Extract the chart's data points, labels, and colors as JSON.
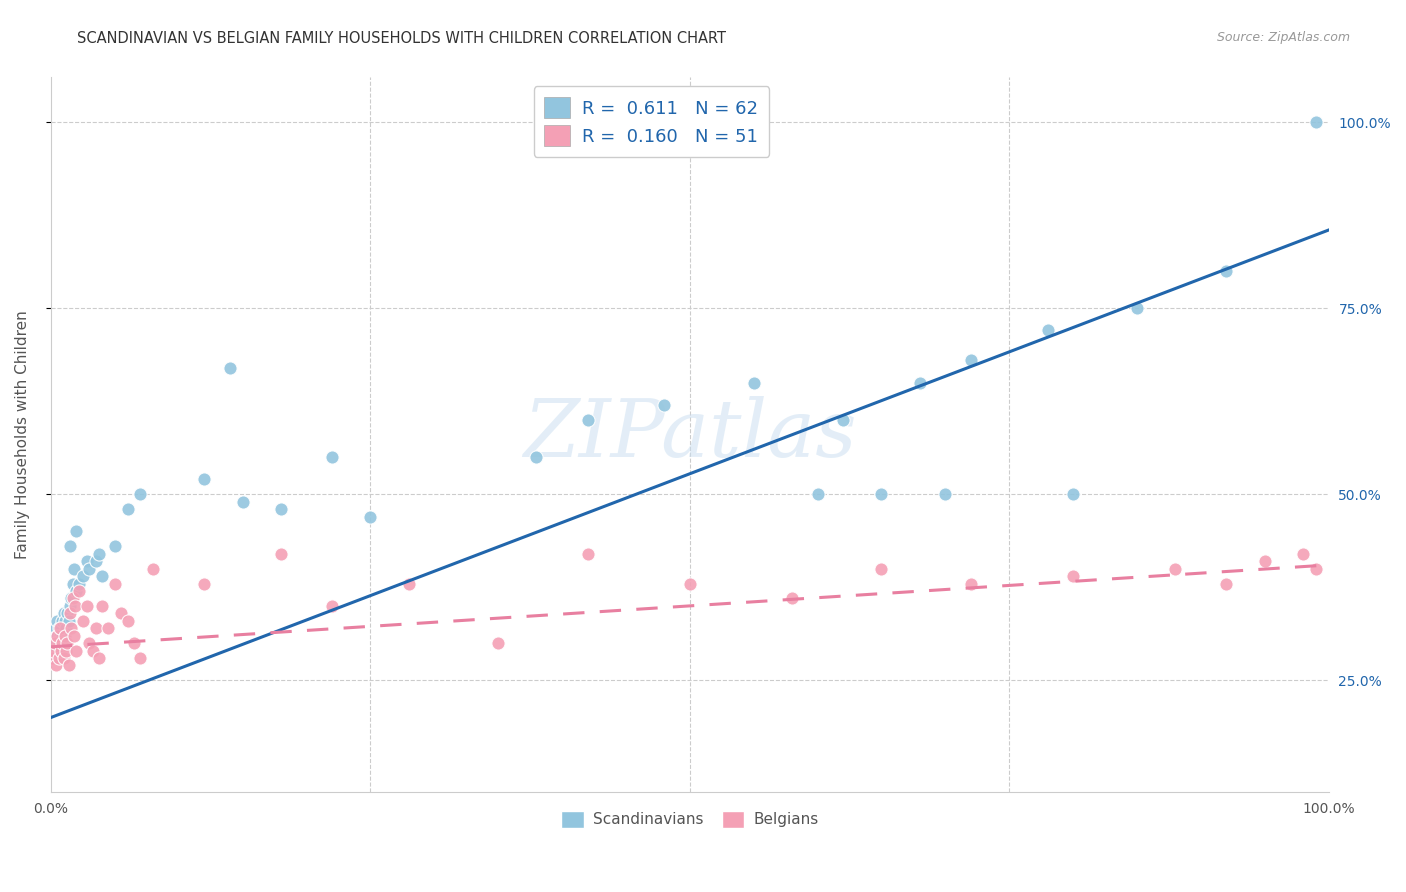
{
  "title": "SCANDINAVIAN VS BELGIAN FAMILY HOUSEHOLDS WITH CHILDREN CORRELATION CHART",
  "source": "Source: ZipAtlas.com",
  "ylabel": "Family Households with Children",
  "watermark": "ZIPatlas",
  "scandinavian_color": "#92c5de",
  "belgian_color": "#f4a0b5",
  "scandinavian_line_color": "#2166ac",
  "belgian_line_color": "#e87fa0",
  "R_scand": 0.611,
  "N_scand": 62,
  "R_belg": 0.16,
  "N_belg": 51,
  "scand_x": [
    0.001,
    0.002,
    0.002,
    0.003,
    0.003,
    0.004,
    0.004,
    0.005,
    0.005,
    0.005,
    0.006,
    0.006,
    0.007,
    0.007,
    0.008,
    0.008,
    0.009,
    0.009,
    0.01,
    0.01,
    0.011,
    0.012,
    0.013,
    0.014,
    0.015,
    0.015,
    0.016,
    0.017,
    0.018,
    0.02,
    0.02,
    0.022,
    0.025,
    0.028,
    0.03,
    0.035,
    0.038,
    0.04,
    0.05,
    0.06,
    0.07,
    0.12,
    0.15,
    0.18,
    0.22,
    0.25,
    0.14,
    0.38,
    0.42,
    0.48,
    0.55,
    0.62,
    0.68,
    0.72,
    0.78,
    0.85,
    0.92,
    0.6,
    0.65,
    0.7,
    0.8,
    0.99
  ],
  "scand_y": [
    0.28,
    0.28,
    0.3,
    0.29,
    0.31,
    0.3,
    0.32,
    0.29,
    0.31,
    0.33,
    0.3,
    0.32,
    0.31,
    0.29,
    0.32,
    0.3,
    0.33,
    0.31,
    0.34,
    0.3,
    0.33,
    0.32,
    0.34,
    0.33,
    0.35,
    0.43,
    0.36,
    0.38,
    0.4,
    0.37,
    0.45,
    0.38,
    0.39,
    0.41,
    0.4,
    0.41,
    0.42,
    0.39,
    0.43,
    0.48,
    0.5,
    0.52,
    0.49,
    0.48,
    0.55,
    0.47,
    0.67,
    0.55,
    0.6,
    0.62,
    0.65,
    0.6,
    0.65,
    0.68,
    0.72,
    0.75,
    0.8,
    0.5,
    0.5,
    0.5,
    0.5,
    1.0
  ],
  "belg_x": [
    0.001,
    0.002,
    0.003,
    0.004,
    0.005,
    0.006,
    0.007,
    0.008,
    0.009,
    0.01,
    0.011,
    0.012,
    0.013,
    0.014,
    0.015,
    0.016,
    0.017,
    0.018,
    0.019,
    0.02,
    0.022,
    0.025,
    0.028,
    0.03,
    0.033,
    0.035,
    0.038,
    0.04,
    0.045,
    0.05,
    0.055,
    0.06,
    0.065,
    0.07,
    0.08,
    0.12,
    0.18,
    0.22,
    0.28,
    0.35,
    0.42,
    0.5,
    0.58,
    0.65,
    0.72,
    0.8,
    0.88,
    0.92,
    0.95,
    0.98,
    0.99
  ],
  "belg_y": [
    0.28,
    0.29,
    0.3,
    0.27,
    0.31,
    0.28,
    0.32,
    0.29,
    0.3,
    0.28,
    0.31,
    0.29,
    0.3,
    0.27,
    0.34,
    0.32,
    0.36,
    0.31,
    0.35,
    0.29,
    0.37,
    0.33,
    0.35,
    0.3,
    0.29,
    0.32,
    0.28,
    0.35,
    0.32,
    0.38,
    0.34,
    0.33,
    0.3,
    0.28,
    0.4,
    0.38,
    0.42,
    0.35,
    0.38,
    0.3,
    0.42,
    0.38,
    0.36,
    0.4,
    0.38,
    0.39,
    0.4,
    0.38,
    0.41,
    0.42,
    0.4
  ],
  "scand_line_x0": 0.0,
  "scand_line_y0": 0.2,
  "scand_line_x1": 1.0,
  "scand_line_y1": 0.855,
  "belg_line_x0": 0.0,
  "belg_line_y0": 0.295,
  "belg_line_x1": 1.0,
  "belg_line_y1": 0.405,
  "xlim": [
    0.0,
    1.0
  ],
  "ylim": [
    0.1,
    1.06
  ],
  "xticks": [
    0.0,
    0.25,
    0.5,
    0.75,
    1.0
  ],
  "xtick_labels": [
    "0.0%",
    "",
    "",
    "",
    "100.0%"
  ],
  "ytick_positions": [
    0.25,
    0.5,
    0.75,
    1.0
  ],
  "ytick_labels_right": [
    "25.0%",
    "50.0%",
    "75.0%",
    "100.0%"
  ],
  "background_color": "#ffffff",
  "grid_color": "#cccccc"
}
